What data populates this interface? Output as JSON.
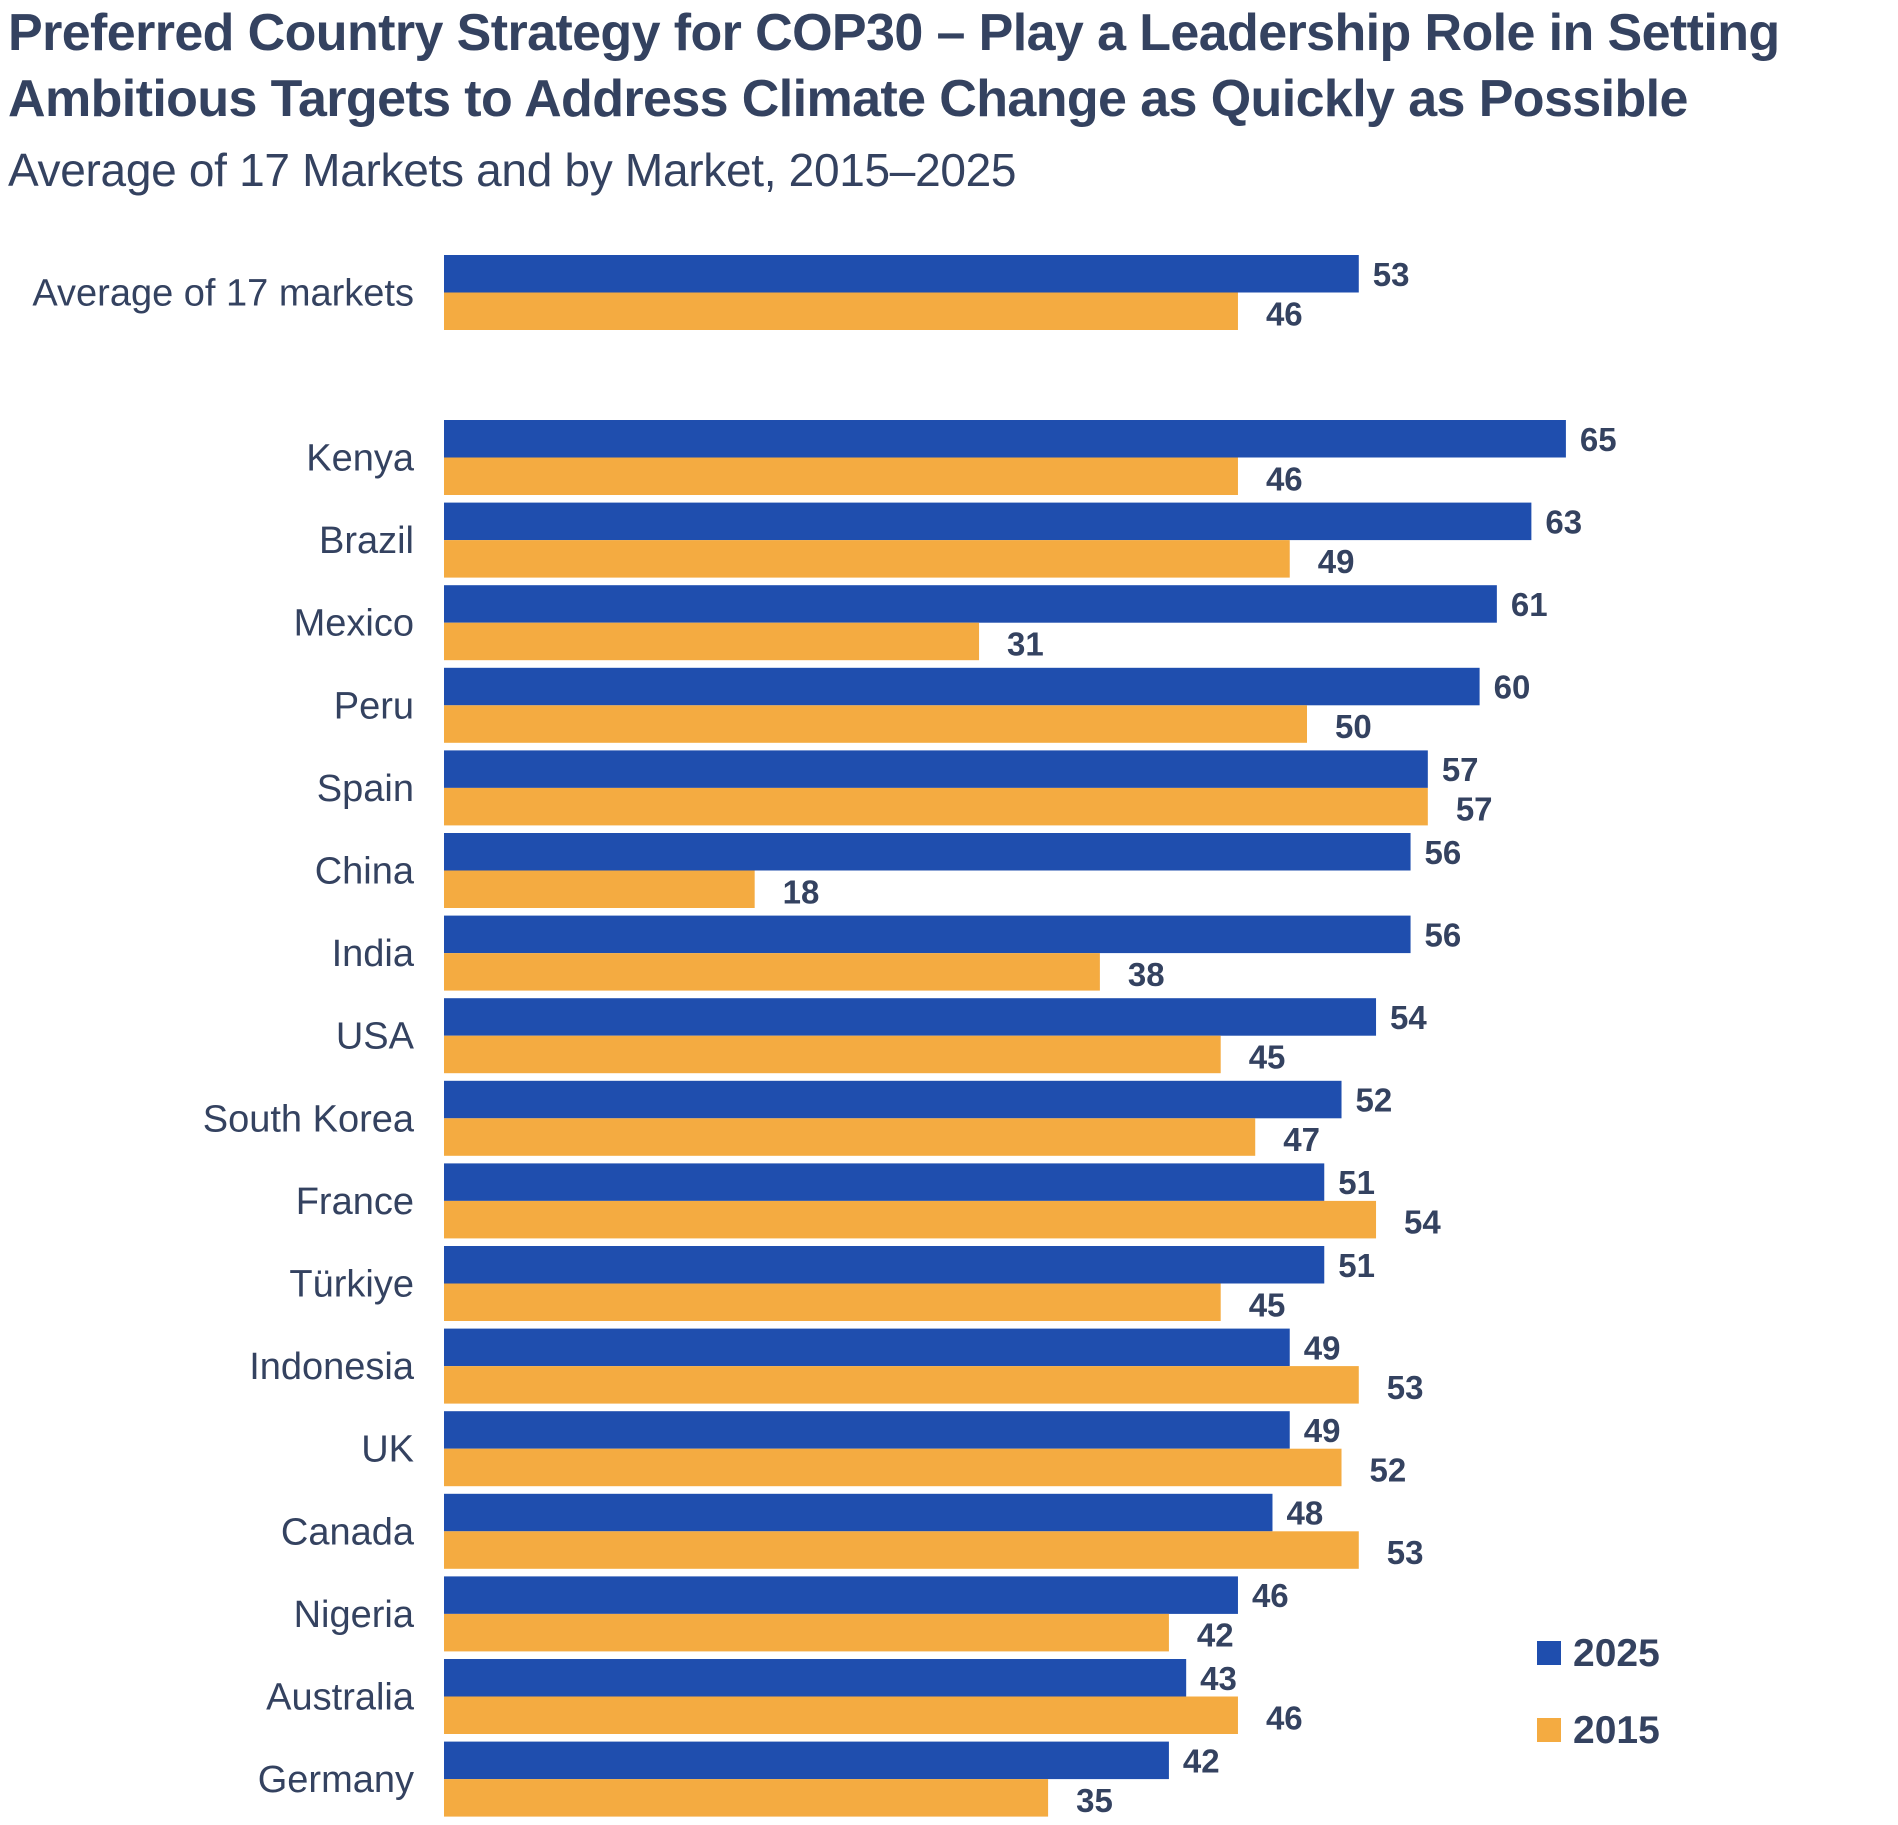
{
  "header": {
    "title_line1": "Preferred Country Strategy for COP30 – Play a Leadership Role in Setting",
    "title_line2": "Ambitious Targets to Address Climate Change as Quickly as Possible",
    "subtitle": "Average of 17 Markets and by Market, 2015–2025"
  },
  "colors": {
    "series_2025": "#1f4eae",
    "series_2015": "#f4ab41",
    "text": "#344260"
  },
  "chart_data": {
    "type": "bar",
    "orientation": "horizontal",
    "title": "Preferred Country Strategy for COP30 – Play a Leadership Role in Setting Ambitious Targets to Address Climate Change as Quickly as Possible",
    "subtitle": "Average of 17 Markets and by Market, 2015–2025",
    "xlabel": "",
    "ylabel": "",
    "xlim": [
      0,
      70
    ],
    "grid": false,
    "legend_position": "bottom-right",
    "categories": [
      "Average of 17 markets",
      "Kenya",
      "Brazil",
      "Mexico",
      "Peru",
      "Spain",
      "China",
      "India",
      "USA",
      "South Korea",
      "France",
      "Türkiye",
      "Indonesia",
      "UK",
      "Canada",
      "Nigeria",
      "Australia",
      "Germany"
    ],
    "series": [
      {
        "name": "2025",
        "color": "#1f4eae",
        "values": [
          53,
          65,
          63,
          61,
          60,
          57,
          56,
          56,
          54,
          52,
          51,
          51,
          49,
          49,
          48,
          46,
          43,
          42
        ]
      },
      {
        "name": "2015",
        "color": "#f4ab41",
        "values": [
          46,
          46,
          49,
          31,
          50,
          57,
          18,
          38,
          45,
          47,
          54,
          45,
          53,
          52,
          53,
          42,
          46,
          35
        ]
      }
    ]
  }
}
